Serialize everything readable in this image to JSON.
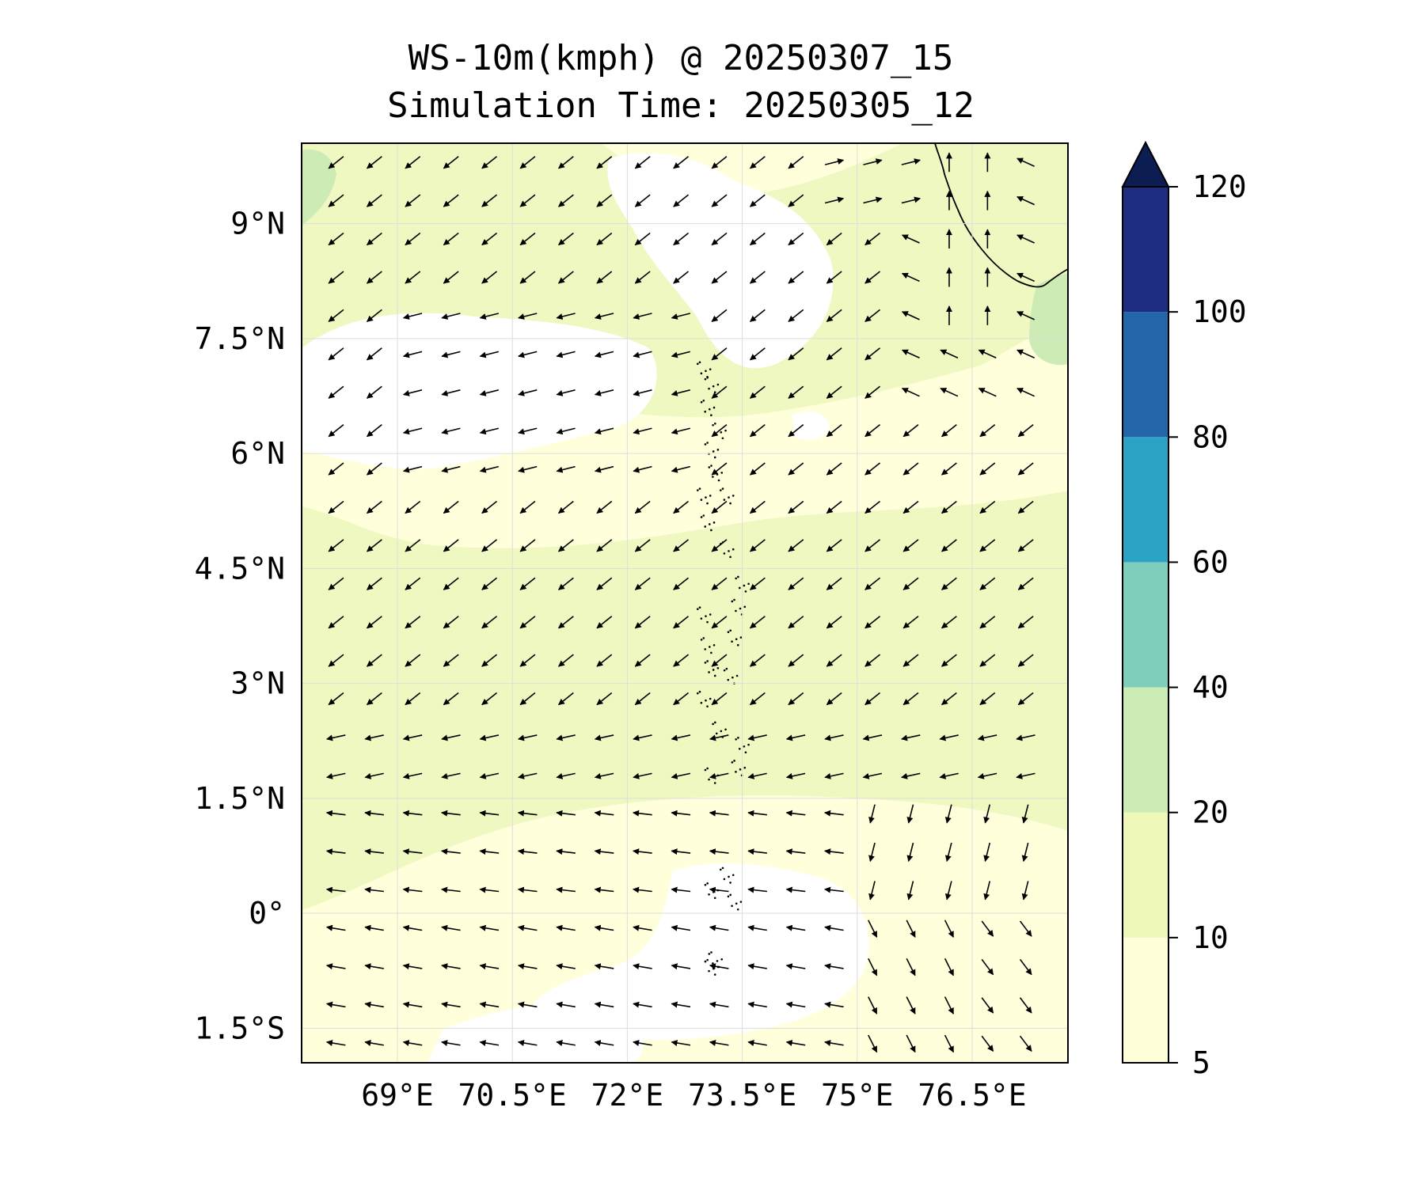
{
  "title": {
    "line1": "WS-10m(kmph) @ 20250307_15",
    "line2": "Simulation Time: 20250305_12"
  },
  "map": {
    "lon_range": [
      67.75,
      77.75
    ],
    "lat_range": [
      -1.95,
      10.05
    ],
    "x_ticks": [
      {
        "value": 69,
        "label": "69°E"
      },
      {
        "value": 70.5,
        "label": "70.5°E"
      },
      {
        "value": 72,
        "label": "72°E"
      },
      {
        "value": 73.5,
        "label": "73.5°E"
      },
      {
        "value": 75,
        "label": "75°E"
      },
      {
        "value": 76.5,
        "label": "76.5°E"
      }
    ],
    "y_ticks": [
      {
        "value": 9,
        "label": "9°N"
      },
      {
        "value": 7.5,
        "label": "7.5°N"
      },
      {
        "value": 6,
        "label": "6°N"
      },
      {
        "value": 4.5,
        "label": "4.5°N"
      },
      {
        "value": 3,
        "label": "3°N"
      },
      {
        "value": 1.5,
        "label": "1.5°N"
      },
      {
        "value": 0,
        "label": "0°"
      },
      {
        "value": -1.5,
        "label": "1.5°S"
      }
    ],
    "gridlines": true,
    "background_fill": "#eff8c0",
    "light_band_fill": "#ffffdc",
    "calm_fill": "#ffffff",
    "vector_color": "#000000",
    "coastline_color": "#000000"
  },
  "colorbar": {
    "orientation": "vertical",
    "extend": "max",
    "levels": [
      {
        "label": "5",
        "from": 5,
        "to": 10,
        "color": "#ffffd9"
      },
      {
        "label": "10",
        "from": 10,
        "to": 20,
        "color": "#eef8b8"
      },
      {
        "label": "20",
        "from": 20,
        "to": 40,
        "color": "#cdebb4"
      },
      {
        "label": "40",
        "from": 40,
        "to": 60,
        "color": "#7fcdbb"
      },
      {
        "label": "60",
        "from": 60,
        "to": 80,
        "color": "#2ca2c4"
      },
      {
        "label": "80",
        "from": 80,
        "to": 100,
        "color": "#2265a9"
      },
      {
        "label": "100",
        "from": 100,
        "to": 120,
        "color": "#1e2c82"
      },
      {
        "label": "120",
        "from": 120,
        "to": null,
        "color": "#0c1d52"
      }
    ]
  }
}
